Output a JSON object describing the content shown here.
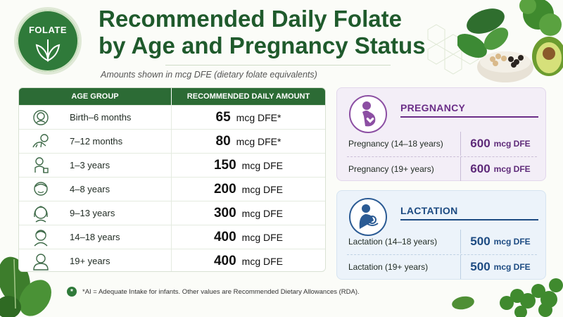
{
  "badge": {
    "label": "FOLATE"
  },
  "title": {
    "line1": "Recommended Daily Folate",
    "line2": "by Age and Pregnancy Status"
  },
  "subtitle": "Amounts shown in mcg DFE (dietary folate equivalents)",
  "table": {
    "headers": [
      "AGE GROUP",
      "RECOMMENDED DAILY AMOUNT"
    ],
    "rows": [
      {
        "age": "Birth–6 months",
        "amount": "65",
        "unit": "mcg DFE*",
        "icon": "infant-icon"
      },
      {
        "age": "7–12 months",
        "amount": "80",
        "unit": "mcg DFE*",
        "icon": "crawling-baby-icon"
      },
      {
        "age": "1–3 years",
        "amount": "150",
        "unit": "mcg DFE",
        "icon": "toddler-icon"
      },
      {
        "age": "4–8 years",
        "amount": "200",
        "unit": "mcg DFE",
        "icon": "child-icon"
      },
      {
        "age": "9–13 years",
        "amount": "300",
        "unit": "mcg DFE",
        "icon": "preteen-icon"
      },
      {
        "age": "14–18 years",
        "amount": "400",
        "unit": "mcg DFE",
        "icon": "teen-icon"
      },
      {
        "age": "19+ years",
        "amount": "400",
        "unit": "mcg DFE",
        "icon": "adult-icon"
      }
    ]
  },
  "pregnancy": {
    "heading": "PREGNANCY",
    "rows": [
      {
        "label": "Pregnancy (14–18 years)",
        "amount": "600",
        "unit": "mcg DFE"
      },
      {
        "label": "Pregnancy (19+ years)",
        "amount": "600",
        "unit": "mcg DFE"
      }
    ]
  },
  "lactation": {
    "heading": "LACTATION",
    "rows": [
      {
        "label": "Lactation (14–18 years)",
        "amount": "500",
        "unit": "mcg DFE"
      },
      {
        "label": "Lactation (19+ years)",
        "amount": "500",
        "unit": "mcg DFE"
      }
    ]
  },
  "footnote": {
    "symbol": "*",
    "text": "*AI = Adequate Intake for infants. Other values are Recommended Dietary Allowances (RDA)."
  },
  "colors": {
    "primary_green": "#2f7a3a",
    "title_green": "#1f5a2c",
    "pregnancy_purple": "#6b2e88",
    "lactation_blue": "#1d4b82"
  }
}
